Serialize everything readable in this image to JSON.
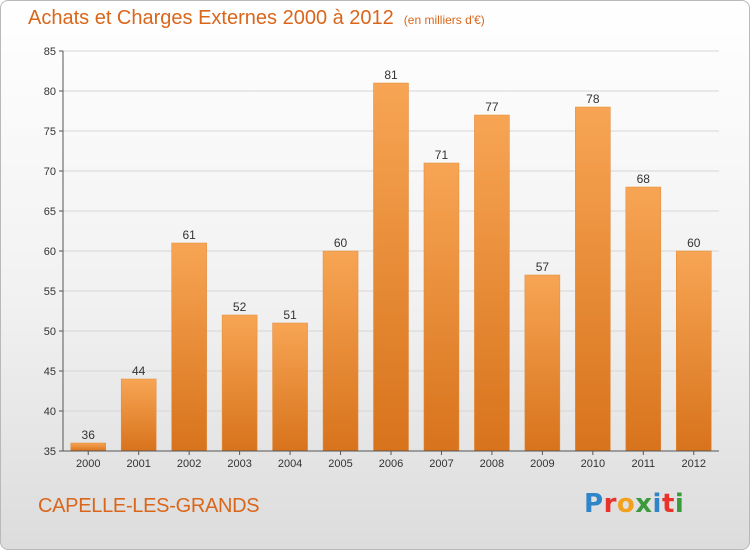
{
  "header": {
    "title": "Achats et Charges Externes 2000 à 2012",
    "subtitle": "(en milliers d'€)"
  },
  "commune": "CAPELLE-LES-GRANDS",
  "logo": {
    "text": "Proxiti",
    "letters": [
      {
        "char": "P",
        "color": "#2e86c8"
      },
      {
        "char": "r",
        "color": "#e8322b"
      },
      {
        "char": "o",
        "color": "#f2a11c"
      },
      {
        "char": "x",
        "color": "#3a9a3c"
      },
      {
        "char": "i",
        "color": "#2e86c8"
      },
      {
        "char": "t",
        "color": "#e8322b"
      },
      {
        "char": "i",
        "color": "#3a9a3c"
      }
    ]
  },
  "colors": {
    "bar_top": "#f7a554",
    "bar_bottom": "#d8731c",
    "title": "#d9661a",
    "axis": "#555555",
    "grid": "#d6d6d6"
  },
  "chart_data": {
    "type": "bar",
    "categories": [
      "2000",
      "2001",
      "2002",
      "2003",
      "2004",
      "2005",
      "2006",
      "2007",
      "2008",
      "2009",
      "2010",
      "2011",
      "2012"
    ],
    "values": [
      36,
      44,
      61,
      52,
      51,
      60,
      81,
      71,
      77,
      57,
      78,
      68,
      60
    ],
    "ylim": [
      35,
      85
    ],
    "yticks": [
      35,
      40,
      45,
      50,
      55,
      60,
      65,
      70,
      75,
      80,
      85
    ],
    "grid": true,
    "data_labels": true
  }
}
